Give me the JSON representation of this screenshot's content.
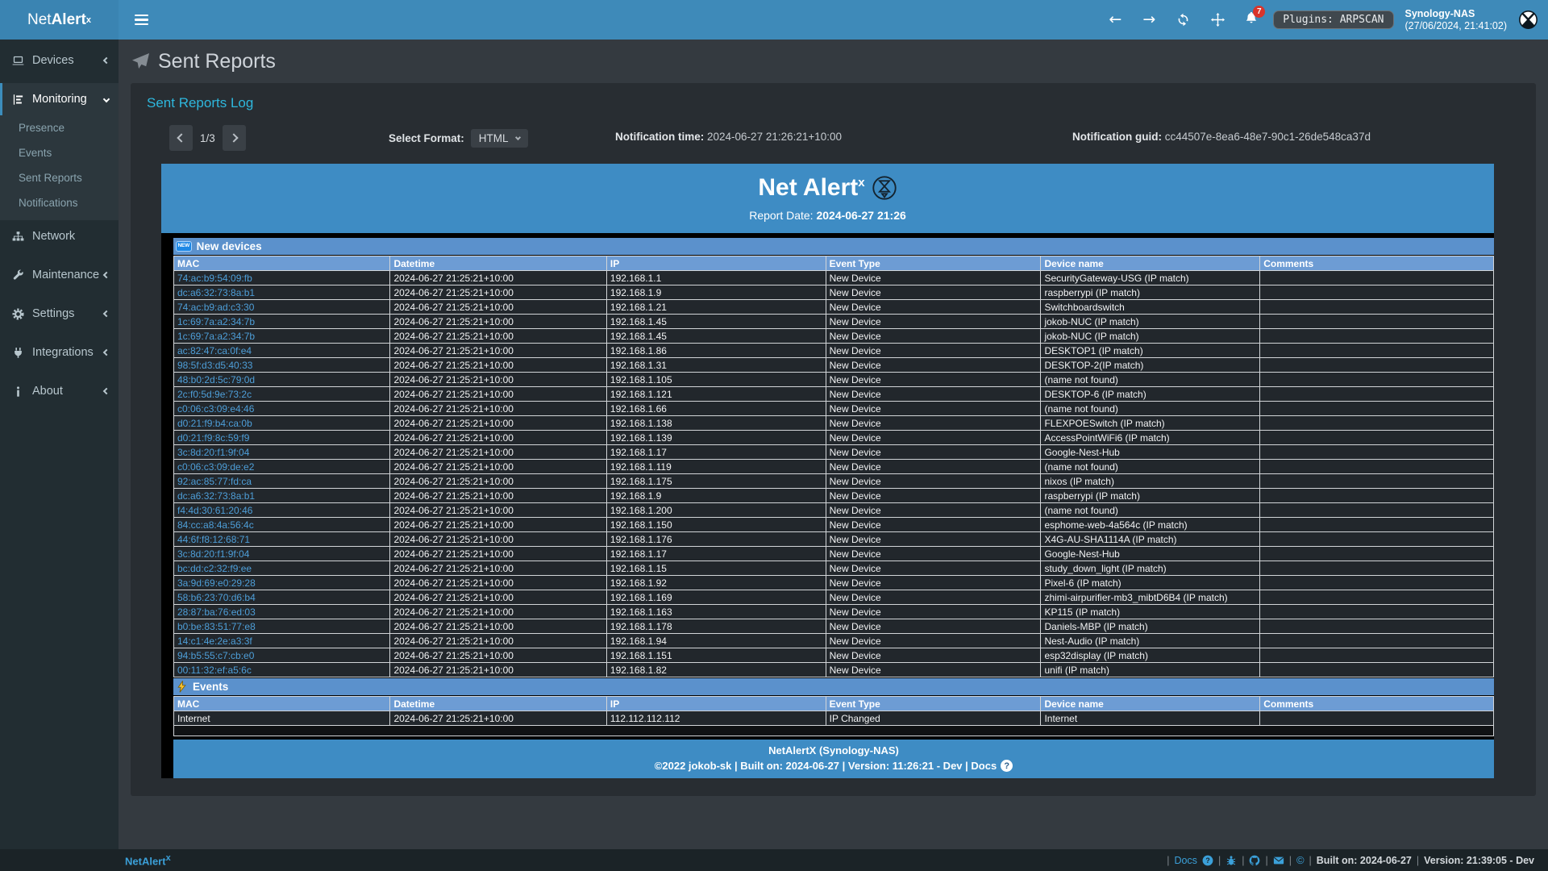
{
  "icons": {
    "new_glyph": "NEW",
    "question_glyph": "?",
    "copyright_glyph": "©",
    "back_glyph": "←",
    "forward_glyph": "→"
  },
  "navbar": {
    "brand_light": "Net",
    "brand_bold": "Alert",
    "brand_sup": "x",
    "notifications_count": "7",
    "plugins_badge": "Plugins: ARPSCAN",
    "host": "Synology-NAS",
    "host_time": "(27/06/2024, 21:41:02)"
  },
  "sidebar": {
    "items": [
      {
        "label": "Devices"
      },
      {
        "label": "Monitoring"
      },
      {
        "label": "Presence"
      },
      {
        "label": "Events"
      },
      {
        "label": "Sent Reports"
      },
      {
        "label": "Notifications"
      },
      {
        "label": "Network"
      },
      {
        "label": "Maintenance"
      },
      {
        "label": "Settings"
      },
      {
        "label": "Integrations"
      },
      {
        "label": "About"
      }
    ]
  },
  "page": {
    "title": "Sent Reports",
    "card_title": "Sent Reports Log",
    "pagination": "1/3",
    "select_format_label": "Select Format:",
    "select_format_value": "HTML",
    "notification_time_label": "Notification time:",
    "notification_time": "2024-06-27 21:26:21+10:00",
    "notification_guid_label": "Notification guid:",
    "notification_guid": "cc44507e-8ea6-48e7-90c1-26de548ca37d"
  },
  "report": {
    "brand": "Net Alert",
    "brand_sup": "x",
    "date_label": "Report Date:",
    "date_value": "2024-06-27 21:26",
    "columns": [
      "MAC",
      "Datetime",
      "IP",
      "Event Type",
      "Device name",
      "Comments"
    ],
    "new_devices": {
      "title": "New devices",
      "rows": [
        [
          "74:ac:b9:54:09:fb",
          "2024-06-27 21:25:21+10:00",
          "192.168.1.1",
          "New Device",
          "SecurityGateway-USG (IP match)",
          ""
        ],
        [
          "dc:a6:32:73:8a:b1",
          "2024-06-27 21:25:21+10:00",
          "192.168.1.9",
          "New Device",
          "raspberrypi (IP match)",
          ""
        ],
        [
          "74:ac:b9:ad:c3:30",
          "2024-06-27 21:25:21+10:00",
          "192.168.1.21",
          "New Device",
          "Switchboardswitch",
          ""
        ],
        [
          "1c:69:7a:a2:34:7b",
          "2024-06-27 21:25:21+10:00",
          "192.168.1.45",
          "New Device",
          "jokob-NUC (IP match)",
          ""
        ],
        [
          "1c:69:7a:a2:34:7b",
          "2024-06-27 21:25:21+10:00",
          "192.168.1.45",
          "New Device",
          "jokob-NUC (IP match)",
          ""
        ],
        [
          "ac:82:47:ca:0f:e4",
          "2024-06-27 21:25:21+10:00",
          "192.168.1.86",
          "New Device",
          "DESKTOP1 (IP match)",
          ""
        ],
        [
          "98:5f:d3:d5:40:33",
          "2024-06-27 21:25:21+10:00",
          "192.168.1.31",
          "New Device",
          "DESKTOP-2(IP match)",
          ""
        ],
        [
          "48:b0:2d:5c:79:0d",
          "2024-06-27 21:25:21+10:00",
          "192.168.1.105",
          "New Device",
          "(name not found)",
          ""
        ],
        [
          "2c:f0:5d:9e:73:2c",
          "2024-06-27 21:25:21+10:00",
          "192.168.1.121",
          "New Device",
          "DESKTOP-6 (IP match)",
          ""
        ],
        [
          "c0:06:c3:09:e4:46",
          "2024-06-27 21:25:21+10:00",
          "192.168.1.66",
          "New Device",
          "(name not found)",
          ""
        ],
        [
          "d0:21:f9:b4:ca:0b",
          "2024-06-27 21:25:21+10:00",
          "192.168.1.138",
          "New Device",
          "FLEXPOESwitch (IP match)",
          ""
        ],
        [
          "d0:21:f9:8c:59:f9",
          "2024-06-27 21:25:21+10:00",
          "192.168.1.139",
          "New Device",
          "AccessPointWiFi6 (IP match)",
          ""
        ],
        [
          "3c:8d:20:f1:9f:04",
          "2024-06-27 21:25:21+10:00",
          "192.168.1.17",
          "New Device",
          "Google-Nest-Hub",
          ""
        ],
        [
          "c0:06:c3:09:de:e2",
          "2024-06-27 21:25:21+10:00",
          "192.168.1.119",
          "New Device",
          "(name not found)",
          ""
        ],
        [
          "92:ac:85:77:fd:ca",
          "2024-06-27 21:25:21+10:00",
          "192.168.1.175",
          "New Device",
          "nixos (IP match)",
          ""
        ],
        [
          "dc:a6:32:73:8a:b1",
          "2024-06-27 21:25:21+10:00",
          "192.168.1.9",
          "New Device",
          "raspberrypi (IP match)",
          ""
        ],
        [
          "f4:4d:30:61:20:46",
          "2024-06-27 21:25:21+10:00",
          "192.168.1.200",
          "New Device",
          "(name not found)",
          ""
        ],
        [
          "84:cc:a8:4a:56:4c",
          "2024-06-27 21:25:21+10:00",
          "192.168.1.150",
          "New Device",
          "esphome-web-4a564c (IP match)",
          ""
        ],
        [
          "44:6f:f8:12:68:71",
          "2024-06-27 21:25:21+10:00",
          "192.168.1.176",
          "New Device",
          "X4G-AU-SHA1114A (IP match)",
          ""
        ],
        [
          "3c:8d:20:f1:9f:04",
          "2024-06-27 21:25:21+10:00",
          "192.168.1.17",
          "New Device",
          "Google-Nest-Hub",
          ""
        ],
        [
          "bc:dd:c2:32:f9:ee",
          "2024-06-27 21:25:21+10:00",
          "192.168.1.15",
          "New Device",
          "study_down_light (IP match)",
          ""
        ],
        [
          "3a:9d:69:e0:29:28",
          "2024-06-27 21:25:21+10:00",
          "192.168.1.92",
          "New Device",
          "Pixel-6 (IP match)",
          ""
        ],
        [
          "58:b6:23:70:d6:b4",
          "2024-06-27 21:25:21+10:00",
          "192.168.1.169",
          "New Device",
          "zhimi-airpurifier-mb3_mibtD6B4 (IP match)",
          ""
        ],
        [
          "28:87:ba:76:ed:03",
          "2024-06-27 21:25:21+10:00",
          "192.168.1.163",
          "New Device",
          "KP115 (IP match)",
          ""
        ],
        [
          "b0:be:83:51:77:e8",
          "2024-06-27 21:25:21+10:00",
          "192.168.1.178",
          "New Device",
          "Daniels-MBP (IP match)",
          ""
        ],
        [
          "14:c1:4e:2e:a3:3f",
          "2024-06-27 21:25:21+10:00",
          "192.168.1.94",
          "New Device",
          "Nest-Audio (IP match)",
          ""
        ],
        [
          "94:b5:55:c7:cb:e0",
          "2024-06-27 21:25:21+10:00",
          "192.168.1.151",
          "New Device",
          "esp32display (IP match)",
          ""
        ],
        [
          "00:11:32:ef:a5:6c",
          "2024-06-27 21:25:21+10:00",
          "192.168.1.82",
          "New Device",
          "unifi (IP match)",
          ""
        ]
      ]
    },
    "events": {
      "title": "Events",
      "rows": [
        [
          "Internet",
          "2024-06-27 21:25:21+10:00",
          "112.112.112.112",
          "IP Changed",
          "Internet",
          ""
        ]
      ]
    },
    "footer_line1": "NetAlertX (Synology-NAS)",
    "footer_line2": "©2022 jokob-sk | Built on: 2024-06-27 | Version: 11:26:21 - Dev | Docs"
  },
  "footer": {
    "brand": "NetAlert",
    "brand_sup": "x",
    "sep": "|",
    "docs_label": "Docs",
    "built_label": "Built on: 2024-06-27",
    "version_label": "Version: 21:39:05 - Dev"
  },
  "colors": {
    "navbar_blue": "#3e8ab9",
    "sidebar_dark": "#222d32",
    "card_dark": "#282d32",
    "report_header_blue": "#3e8cc4",
    "section_bar_blue": "#5b91cc",
    "table_header_blue": "#6d9cd4",
    "link_blue": "#4e9fd9",
    "accent_cyan": "#2eb7dd",
    "badge_red": "#d9342b"
  }
}
